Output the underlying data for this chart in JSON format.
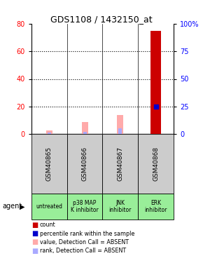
{
  "title": "GDS1108 / 1432150_at",
  "samples": [
    "GSM40865",
    "GSM40866",
    "GSM40867",
    "GSM40868"
  ],
  "agents": [
    "untreated",
    "p38 MAP\nK inhibitor",
    "JNK\ninhibitor",
    "ERK\ninhibitor"
  ],
  "sample_bg": "#cccccc",
  "agent_color": "#99ee99",
  "count_values": [
    0,
    0,
    0,
    75
  ],
  "percentile_values": [
    0,
    0,
    0,
    20
  ],
  "absent_value_values": [
    2.5,
    9.0,
    14.0,
    0
  ],
  "absent_rank_values": [
    1.0,
    1.8,
    4.0,
    0
  ],
  "ylim_left": [
    0,
    80
  ],
  "ylim_right": [
    0,
    100
  ],
  "yticks_left": [
    0,
    20,
    40,
    60,
    80
  ],
  "ytick_labels_left": [
    "0",
    "20",
    "40",
    "60",
    "80"
  ],
  "yticks_right": [
    0,
    25,
    50,
    75,
    100
  ],
  "ytick_labels_right": [
    "0",
    "25",
    "50",
    "75",
    "100%"
  ],
  "count_color": "#cc0000",
  "percentile_color": "#0000cc",
  "absent_value_color": "#ffaaaa",
  "absent_rank_color": "#aaaaff",
  "legend_items": [
    {
      "color": "#cc0000",
      "label": "count"
    },
    {
      "color": "#0000cc",
      "label": "percentile rank within the sample"
    },
    {
      "color": "#ffaaaa",
      "label": "value, Detection Call = ABSENT"
    },
    {
      "color": "#aaaaff",
      "label": "rank, Detection Call = ABSENT"
    }
  ]
}
